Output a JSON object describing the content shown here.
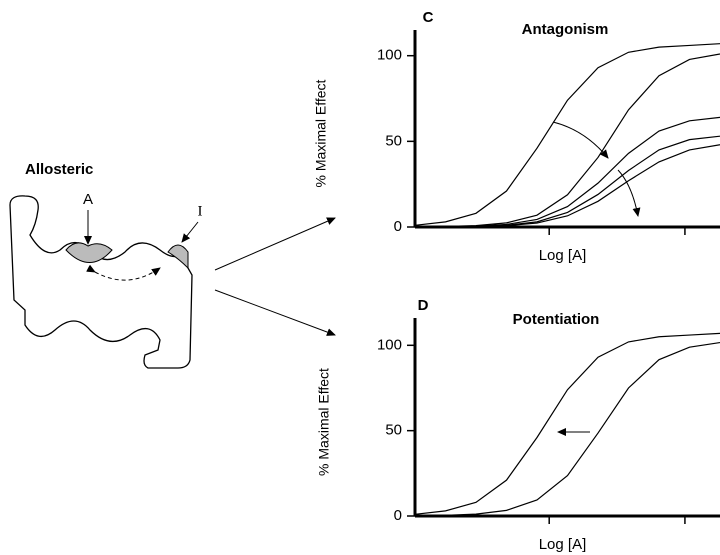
{
  "diagram": {
    "title": "Allosteric",
    "labels": [
      "A",
      "I"
    ]
  },
  "chart_data": [
    {
      "type": "line",
      "panel": "C",
      "title": "Antagonism",
      "ylabel": "% Maximal Effect",
      "xlabel": "Log [A]",
      "x": [
        0,
        1,
        2,
        3,
        4,
        5,
        6,
        7,
        8,
        9,
        10
      ],
      "xlim": [
        0,
        10
      ],
      "ylim": [
        0,
        115
      ],
      "yticks": [
        0,
        50,
        100
      ],
      "series": [
        {
          "color": "#000000",
          "values": [
            1,
            3,
            8,
            21,
            46,
            74,
            93,
            102,
            105,
            106,
            107
          ]
        },
        {
          "color": "#000000",
          "values": [
            0,
            0.3,
            0.8,
            2.4,
            6.9,
            18.8,
            40.6,
            68.4,
            88.3,
            97.8,
            101
          ]
        },
        {
          "color": "#000000",
          "values": [
            0,
            0.2,
            0.5,
            1.5,
            4.4,
            11.9,
            25.6,
            43,
            56,
            62,
            64
          ]
        },
        {
          "color": "#000000",
          "values": [
            0,
            0.1,
            0.4,
            1,
            3,
            8.5,
            19,
            33,
            45,
            51,
            53
          ]
        },
        {
          "color": "#000000",
          "values": [
            0,
            0.1,
            0.3,
            0.8,
            2.3,
            6.5,
            15,
            27,
            38,
            45,
            48
          ]
        }
      ]
    },
    {
      "type": "line",
      "panel": "D",
      "title": "Potentiation",
      "ylabel": "% Maximal Effect",
      "xlabel": "Log [A]",
      "x": [
        0,
        1,
        2,
        3,
        4,
        5,
        6,
        7,
        8,
        9,
        10
      ],
      "xlim": [
        0,
        10
      ],
      "ylim": [
        0,
        116
      ],
      "yticks": [
        0,
        50,
        100
      ],
      "series": [
        {
          "color": "#000000",
          "values": [
            1,
            3,
            8,
            21,
            46,
            74,
            93,
            102,
            105,
            106,
            107
          ]
        },
        {
          "color": "#000000",
          "values": [
            0.1,
            0.4,
            1.1,
            3.3,
            9.4,
            23.7,
            48.6,
            75,
            91.6,
            98.9,
            101.6
          ]
        }
      ]
    }
  ]
}
